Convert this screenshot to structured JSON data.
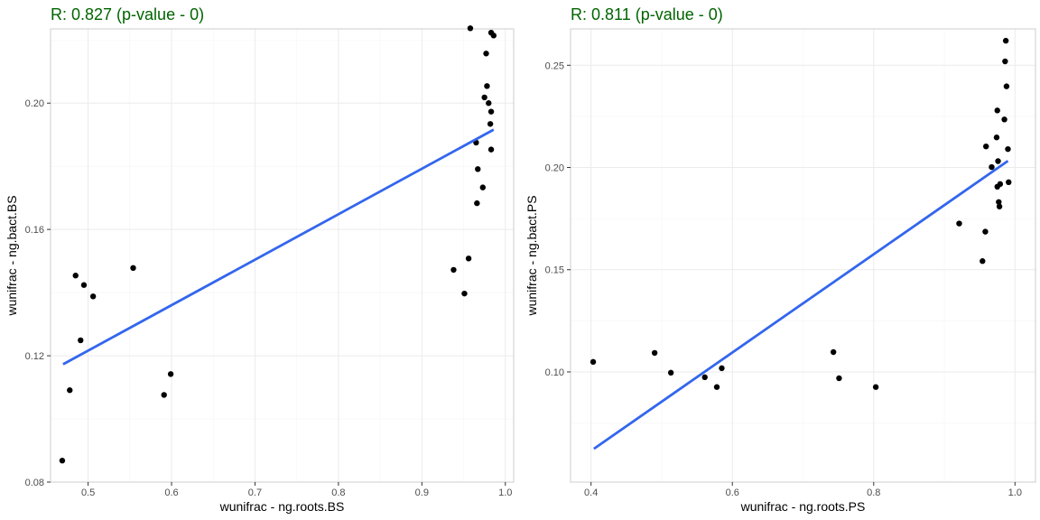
{
  "chart_data": [
    {
      "type": "scatter",
      "title": "R: 0.827 (p-value - 0)",
      "xlabel": "wunifrac - ng.roots.BS",
      "ylabel": "wunifrac - ng.bact.BS",
      "xlim": [
        0.455,
        1.01
      ],
      "ylim": [
        0.08,
        0.2235
      ],
      "xticks": [
        0.5,
        0.6,
        0.7,
        0.8,
        0.9,
        1.0
      ],
      "xtick_labels": [
        "0.5",
        "0.6",
        "0.7",
        "0.8",
        "0.9",
        "1.0"
      ],
      "yticks": [
        0.08,
        0.12,
        0.16,
        0.2
      ],
      "ytick_labels": [
        "0.08",
        "0.12",
        "0.16",
        "0.20"
      ],
      "grid": true,
      "regression_line": {
        "x": [
          0.47,
          0.986
        ],
        "y": [
          0.1173,
          0.1916
        ],
        "color": "#3366ee"
      },
      "points": [
        {
          "x": 0.469,
          "y": 0.0868
        },
        {
          "x": 0.478,
          "y": 0.1091
        },
        {
          "x": 0.485,
          "y": 0.1454
        },
        {
          "x": 0.491,
          "y": 0.1249
        },
        {
          "x": 0.495,
          "y": 0.1424
        },
        {
          "x": 0.506,
          "y": 0.1388
        },
        {
          "x": 0.554,
          "y": 0.1478
        },
        {
          "x": 0.591,
          "y": 0.1076
        },
        {
          "x": 0.599,
          "y": 0.1142
        },
        {
          "x": 0.938,
          "y": 0.1472
        },
        {
          "x": 0.951,
          "y": 0.1397
        },
        {
          "x": 0.956,
          "y": 0.1508
        },
        {
          "x": 0.958,
          "y": 0.2237
        },
        {
          "x": 0.965,
          "y": 0.1875
        },
        {
          "x": 0.966,
          "y": 0.1683
        },
        {
          "x": 0.967,
          "y": 0.1791
        },
        {
          "x": 0.973,
          "y": 0.1733
        },
        {
          "x": 0.975,
          "y": 0.2018
        },
        {
          "x": 0.977,
          "y": 0.2157
        },
        {
          "x": 0.978,
          "y": 0.2054
        },
        {
          "x": 0.98,
          "y": 0.2
        },
        {
          "x": 0.982,
          "y": 0.1934
        },
        {
          "x": 0.983,
          "y": 0.1973
        },
        {
          "x": 0.983,
          "y": 0.1853
        },
        {
          "x": 0.983,
          "y": 0.2223
        },
        {
          "x": 0.986,
          "y": 0.2214
        }
      ]
    },
    {
      "type": "scatter",
      "title": "R: 0.811 (p-value - 0)",
      "xlabel": "wunifrac - ng.roots.PS",
      "ylabel": "wunifrac - ng.bact.PS",
      "xlim": [
        0.371,
        1.029
      ],
      "ylim": [
        0.0461,
        0.2678
      ],
      "xticks": [
        0.4,
        0.6,
        0.8,
        1.0
      ],
      "xtick_labels": [
        "0.4",
        "0.6",
        "0.8",
        "1.0"
      ],
      "yticks": [
        0.1,
        0.15,
        0.2,
        0.25
      ],
      "ytick_labels": [
        "0.10",
        "0.15",
        "0.20",
        "0.25"
      ],
      "grid": true,
      "regression_line": {
        "x": [
          0.404,
          0.99
        ],
        "y": [
          0.0624,
          0.2032
        ],
        "color": "#3366ee"
      },
      "points": [
        {
          "x": 0.403,
          "y": 0.1049
        },
        {
          "x": 0.49,
          "y": 0.1093
        },
        {
          "x": 0.513,
          "y": 0.0996
        },
        {
          "x": 0.561,
          "y": 0.0974
        },
        {
          "x": 0.578,
          "y": 0.0926
        },
        {
          "x": 0.585,
          "y": 0.1018
        },
        {
          "x": 0.743,
          "y": 0.1097
        },
        {
          "x": 0.751,
          "y": 0.0969
        },
        {
          "x": 0.803,
          "y": 0.0926
        },
        {
          "x": 0.921,
          "y": 0.1726
        },
        {
          "x": 0.954,
          "y": 0.1542
        },
        {
          "x": 0.958,
          "y": 0.1686
        },
        {
          "x": 0.959,
          "y": 0.2103
        },
        {
          "x": 0.967,
          "y": 0.2002
        },
        {
          "x": 0.974,
          "y": 0.2147
        },
        {
          "x": 0.975,
          "y": 0.2279
        },
        {
          "x": 0.975,
          "y": 0.1906
        },
        {
          "x": 0.976,
          "y": 0.2031
        },
        {
          "x": 0.977,
          "y": 0.1831
        },
        {
          "x": 0.978,
          "y": 0.1809
        },
        {
          "x": 0.979,
          "y": 0.1919
        },
        {
          "x": 0.985,
          "y": 0.2235
        },
        {
          "x": 0.986,
          "y": 0.2519
        },
        {
          "x": 0.987,
          "y": 0.262
        },
        {
          "x": 0.988,
          "y": 0.2397
        },
        {
          "x": 0.99,
          "y": 0.209
        },
        {
          "x": 0.991,
          "y": 0.1928
        }
      ]
    }
  ]
}
